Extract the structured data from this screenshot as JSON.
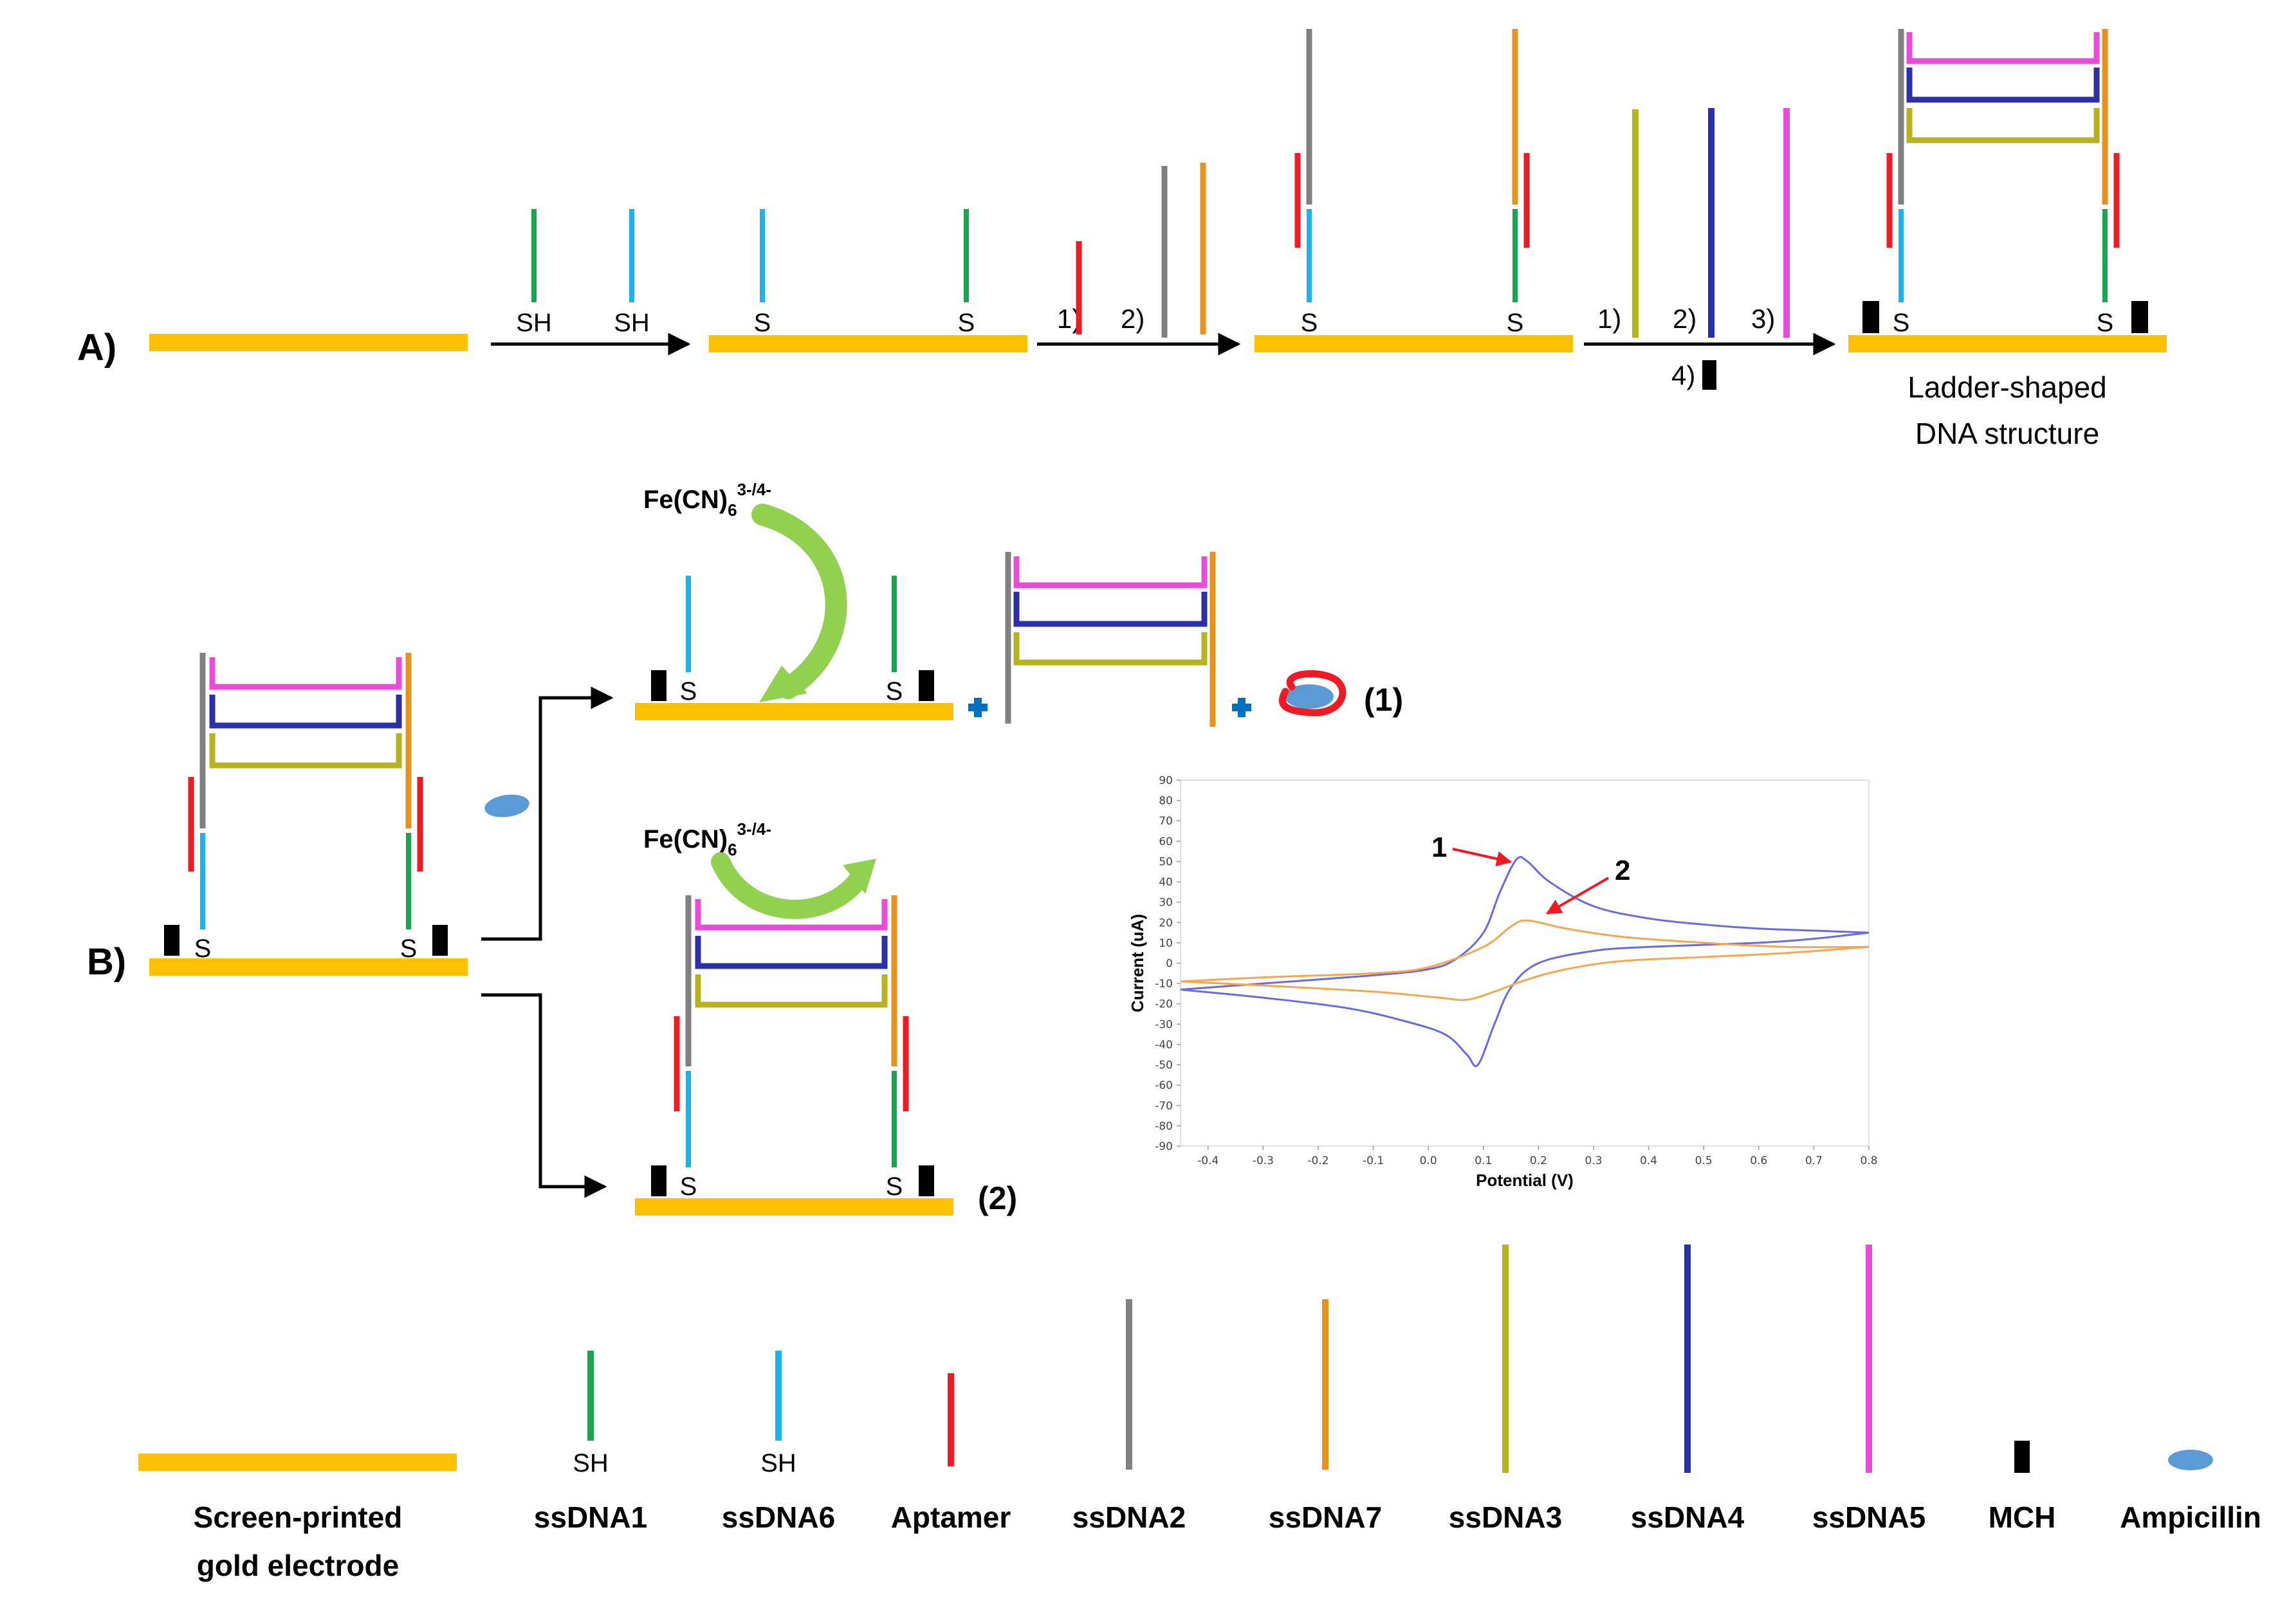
{
  "colors": {
    "electrode": "#FFC000",
    "ssDNA1": "#1AA650",
    "ssDNA6": "#1EB1EA",
    "aptamer": "#ED1C24",
    "ssDNA2": "#808080",
    "ssDNA7": "#E8921E",
    "ssDNA3": "#B7B21E",
    "ssDNA4": "#2B2FA8",
    "ssDNA5": "#E84CD8",
    "mch": "#000000",
    "ampicillin": "#5B9BD5",
    "plus": "#0070C0",
    "curvedArrow": "#92D050",
    "cv1": "#6A6AE0",
    "cv2": "#F4A650",
    "annotationArrow": "#ED1C24"
  },
  "panelA": {
    "label": "A)",
    "thiol": "SH",
    "sulfur": "S",
    "steps2": [
      "1)",
      "2)"
    ],
    "steps3": [
      "1)",
      "2)",
      "3)",
      "4)"
    ],
    "result": [
      "Ladder-shaped",
      "DNA structure"
    ]
  },
  "panelB": {
    "label": "B)",
    "sulfur": "S",
    "redox": "Fe(CN)",
    "redoxSub": "6",
    "redoxSup": "3-/4-",
    "outcome1": "(1)",
    "outcome2": "(2)"
  },
  "chart_data": {
    "type": "line",
    "xlabel": "Potential (V)",
    "ylabel": "Current (uA)",
    "xlim": [
      -0.45,
      0.8
    ],
    "ylim": [
      -90,
      90
    ],
    "xticks": [
      "-0.4",
      "-0.3",
      "-0.2",
      "-0.1",
      "0.0",
      "0.1",
      "0.2",
      "0.3",
      "0.4",
      "0.5",
      "0.6",
      "0.7",
      "0.8"
    ],
    "yticks": [
      "90",
      "80",
      "70",
      "60",
      "50",
      "40",
      "30",
      "20",
      "10",
      "0",
      "-10",
      "-20",
      "-30",
      "-40",
      "-50",
      "-60",
      "-70",
      "-80",
      "-90"
    ],
    "annotations": [
      "1",
      "2"
    ],
    "series": [
      {
        "key": "1",
        "forward": [
          [
            -0.45,
            -13
          ],
          [
            -0.3,
            -10
          ],
          [
            -0.1,
            -6
          ],
          [
            0.0,
            -3
          ],
          [
            0.05,
            2
          ],
          [
            0.1,
            15
          ],
          [
            0.13,
            35
          ],
          [
            0.16,
            51
          ],
          [
            0.18,
            50
          ],
          [
            0.22,
            40
          ],
          [
            0.3,
            28
          ],
          [
            0.4,
            22
          ],
          [
            0.5,
            19
          ],
          [
            0.6,
            17
          ],
          [
            0.7,
            16
          ],
          [
            0.8,
            15
          ]
        ],
        "reverse": [
          [
            0.8,
            15
          ],
          [
            0.7,
            12
          ],
          [
            0.6,
            10
          ],
          [
            0.4,
            8
          ],
          [
            0.3,
            6
          ],
          [
            0.2,
            0
          ],
          [
            0.15,
            -12
          ],
          [
            0.12,
            -30
          ],
          [
            0.09,
            -50
          ],
          [
            0.07,
            -45
          ],
          [
            0.03,
            -35
          ],
          [
            -0.05,
            -28
          ],
          [
            -0.15,
            -22
          ],
          [
            -0.3,
            -17
          ],
          [
            -0.45,
            -13
          ]
        ]
      },
      {
        "key": "2",
        "forward": [
          [
            -0.45,
            -9
          ],
          [
            -0.3,
            -7
          ],
          [
            -0.1,
            -5
          ],
          [
            0.0,
            -2
          ],
          [
            0.1,
            8
          ],
          [
            0.15,
            18
          ],
          [
            0.18,
            21
          ],
          [
            0.25,
            17
          ],
          [
            0.35,
            13
          ],
          [
            0.5,
            10
          ],
          [
            0.65,
            8
          ],
          [
            0.8,
            8
          ]
        ],
        "reverse": [
          [
            0.8,
            8
          ],
          [
            0.65,
            5
          ],
          [
            0.5,
            3
          ],
          [
            0.35,
            1
          ],
          [
            0.25,
            -3
          ],
          [
            0.18,
            -8
          ],
          [
            0.12,
            -14
          ],
          [
            0.07,
            -18
          ],
          [
            0.02,
            -17
          ],
          [
            -0.1,
            -14
          ],
          [
            -0.3,
            -11
          ],
          [
            -0.45,
            -9
          ]
        ]
      }
    ]
  },
  "legend": [
    {
      "key": "electrode",
      "labels": [
        "Screen-printed",
        "gold electrode"
      ]
    },
    {
      "key": "ssDNA1",
      "labels": [
        "ssDNA1"
      ],
      "sub": "SH"
    },
    {
      "key": "ssDNA6",
      "labels": [
        "ssDNA6"
      ],
      "sub": "SH"
    },
    {
      "key": "aptamer",
      "labels": [
        "Aptamer"
      ]
    },
    {
      "key": "ssDNA2",
      "labels": [
        "ssDNA2"
      ]
    },
    {
      "key": "ssDNA7",
      "labels": [
        "ssDNA7"
      ]
    },
    {
      "key": "ssDNA3",
      "labels": [
        "ssDNA3"
      ]
    },
    {
      "key": "ssDNA4",
      "labels": [
        "ssDNA4"
      ]
    },
    {
      "key": "ssDNA5",
      "labels": [
        "ssDNA5"
      ]
    },
    {
      "key": "mch",
      "labels": [
        "MCH"
      ]
    },
    {
      "key": "ampicillin",
      "labels": [
        "Ampicillin"
      ]
    }
  ]
}
